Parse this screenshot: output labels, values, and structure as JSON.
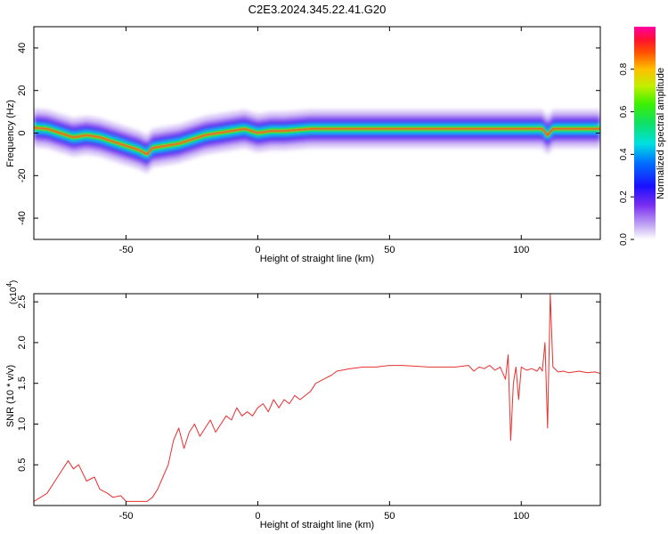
{
  "title": "C2E3.2024.345.22.41.G20",
  "chart_data": [
    {
      "type": "heatmap",
      "xlabel": "Height of straight line (km)",
      "ylabel": "Frequency (Hz)",
      "xlim": [
        -85,
        130
      ],
      "ylim": [
        -50,
        50
      ],
      "x_ticks": [
        "-50",
        "0",
        "50",
        "100"
      ],
      "y_ticks": [
        "40",
        "20",
        "0",
        "-20",
        "-40"
      ],
      "colorbar": {
        "label": "Normalized spectral amplitude",
        "range": [
          0,
          1
        ],
        "ticks": [
          "0.0",
          "0.2",
          "0.4",
          "0.6",
          "0.8"
        ]
      },
      "ridge": {
        "x": [
          -85,
          -80,
          -75,
          -70,
          -65,
          -60,
          -55,
          -50,
          -45,
          -42,
          -40,
          -35,
          -30,
          -25,
          -20,
          -15,
          -10,
          -5,
          0,
          5,
          10,
          20,
          30,
          40,
          50,
          60,
          70,
          80,
          90,
          100,
          108,
          110,
          112,
          120,
          130
        ],
        "frequency": [
          2.5,
          2,
          0,
          -2,
          -1,
          -2,
          -4,
          -6,
          -8,
          -10,
          -7,
          -6,
          -5,
          -3,
          -1,
          0,
          1,
          2,
          0,
          1,
          1,
          2,
          2,
          2,
          2,
          2,
          2,
          2,
          2,
          2,
          2,
          -1,
          2,
          2,
          2
        ]
      }
    },
    {
      "type": "line",
      "xlabel": "Height of straight line (km)",
      "ylabel": "SNR (10 * v/v)",
      "y_multiplier": "(x10",
      "y_multiplier_exp": "4",
      "y_multiplier_close": ")",
      "xlim": [
        -85,
        130
      ],
      "ylim": [
        0,
        2.6
      ],
      "x_ticks": [
        "-50",
        "0",
        "50",
        "100"
      ],
      "y_ticks": [
        "0.5",
        "1.0",
        "1.5",
        "2.0",
        "2.5"
      ],
      "color": "#e8302e",
      "x": [
        -85,
        -80,
        -75,
        -72,
        -70,
        -68,
        -65,
        -62,
        -60,
        -57,
        -55,
        -52,
        -50,
        -47,
        -45,
        -42,
        -40,
        -38,
        -36,
        -34,
        -32,
        -30,
        -28,
        -26,
        -24,
        -22,
        -20,
        -18,
        -16,
        -14,
        -12,
        -10,
        -8,
        -6,
        -4,
        -2,
        0,
        2,
        4,
        6,
        8,
        10,
        12,
        14,
        16,
        18,
        20,
        22,
        25,
        28,
        30,
        35,
        40,
        45,
        50,
        55,
        60,
        65,
        70,
        75,
        80,
        82,
        84,
        86,
        88,
        90,
        92,
        94,
        95,
        96,
        97,
        98,
        99,
        100,
        102,
        104,
        106,
        107,
        108,
        109,
        110,
        111,
        112,
        114,
        116,
        118,
        120,
        122,
        125,
        128,
        130
      ],
      "y": [
        0.05,
        0.15,
        0.4,
        0.55,
        0.45,
        0.5,
        0.3,
        0.35,
        0.2,
        0.15,
        0.1,
        0.12,
        0.05,
        0.05,
        0.05,
        0.05,
        0.1,
        0.2,
        0.35,
        0.5,
        0.8,
        0.95,
        0.7,
        0.9,
        1.0,
        0.85,
        0.95,
        1.05,
        0.9,
        1.0,
        1.1,
        1.05,
        1.2,
        1.1,
        1.15,
        1.1,
        1.2,
        1.25,
        1.15,
        1.3,
        1.2,
        1.3,
        1.25,
        1.35,
        1.3,
        1.35,
        1.4,
        1.5,
        1.55,
        1.6,
        1.65,
        1.68,
        1.7,
        1.7,
        1.72,
        1.72,
        1.71,
        1.7,
        1.7,
        1.7,
        1.72,
        1.65,
        1.7,
        1.68,
        1.72,
        1.66,
        1.7,
        1.55,
        1.85,
        0.8,
        1.5,
        1.7,
        1.3,
        1.7,
        1.66,
        1.68,
        1.65,
        1.7,
        1.65,
        2.0,
        0.95,
        2.6,
        1.7,
        1.64,
        1.65,
        1.63,
        1.64,
        1.65,
        1.63,
        1.64,
        1.62
      ]
    }
  ]
}
